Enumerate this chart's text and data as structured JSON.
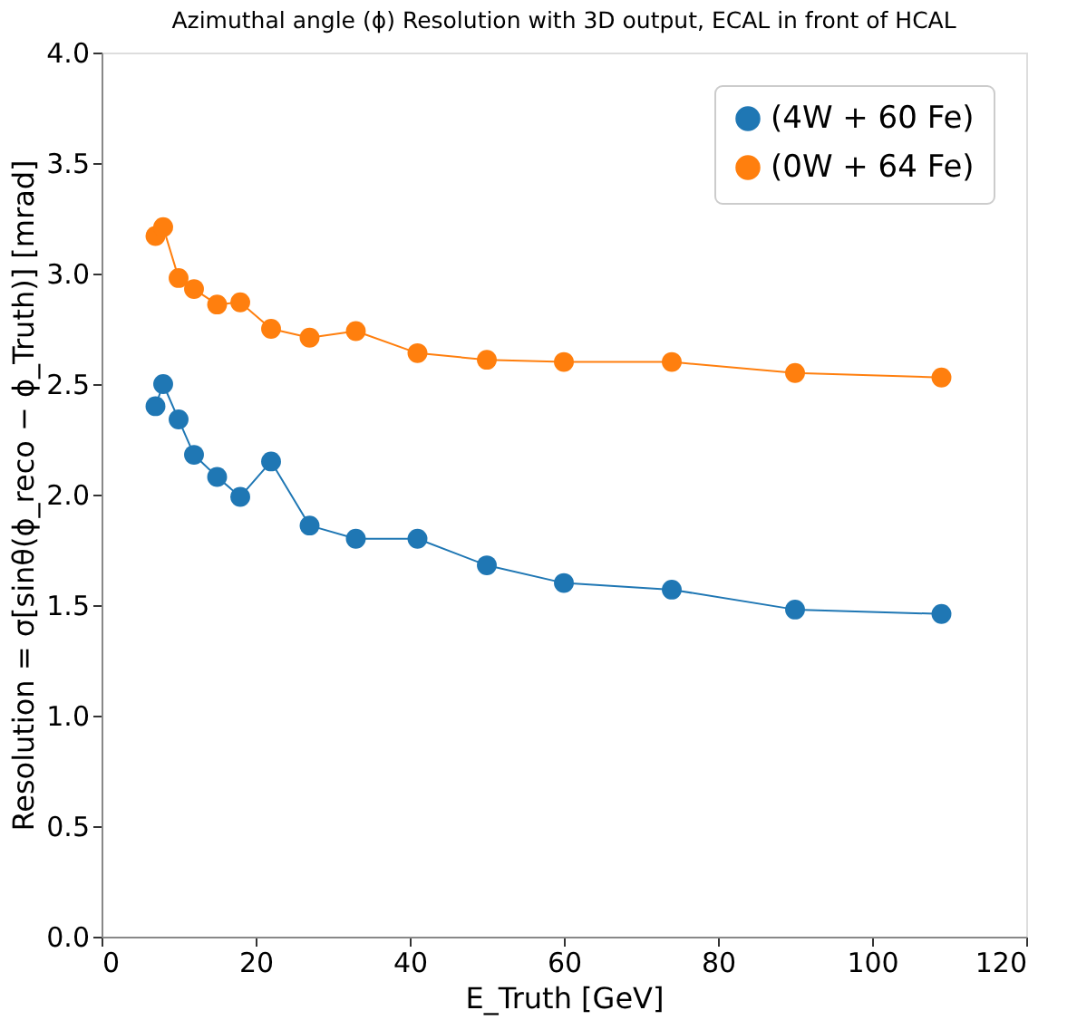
{
  "chart_data": {
    "type": "line",
    "title": "Azimuthal angle (ϕ) Resolution with 3D output, ECAL in front of HCAL",
    "xlabel": "E_Truth [GeV]",
    "ylabel": "Resolution = σ[sinθ(ϕ_reco − ϕ_Truth)] [mrad]",
    "x": [
      7,
      8,
      10,
      12,
      15,
      18,
      22,
      27,
      33,
      41,
      50,
      60,
      74,
      90,
      109
    ],
    "series": [
      {
        "name": "(4W + 60 Fe)",
        "color": "#1f77b4",
        "values": [
          2.4,
          2.5,
          2.34,
          2.18,
          2.08,
          1.99,
          2.15,
          1.86,
          1.8,
          1.8,
          1.68,
          1.6,
          1.57,
          1.48,
          1.46
        ]
      },
      {
        "name": "(0W + 64 Fe)",
        "color": "#ff7f0e",
        "values": [
          3.17,
          3.21,
          2.98,
          2.93,
          2.86,
          2.87,
          2.75,
          2.71,
          2.74,
          2.64,
          2.61,
          2.6,
          2.6,
          2.55,
          2.53
        ]
      }
    ],
    "xlim": [
      0,
      120
    ],
    "xticks": [
      0,
      20,
      40,
      60,
      80,
      100,
      120
    ],
    "ylim": [
      0,
      4.0
    ],
    "yticks": [
      {
        "value": 0,
        "label": "0.0"
      },
      {
        "value": 0.5,
        "label": "0.5"
      },
      {
        "value": 1,
        "label": "1.0"
      },
      {
        "value": 1.5,
        "label": "1.5"
      },
      {
        "value": 2,
        "label": "2.0"
      },
      {
        "value": 2.5,
        "label": "2.5"
      },
      {
        "value": 3,
        "label": "3.0"
      },
      {
        "value": 3.5,
        "label": "3.5"
      },
      {
        "value": 4,
        "label": "4.0"
      }
    ],
    "marker": "circle",
    "line_style": "solid",
    "grid": false,
    "legend": "top right"
  }
}
